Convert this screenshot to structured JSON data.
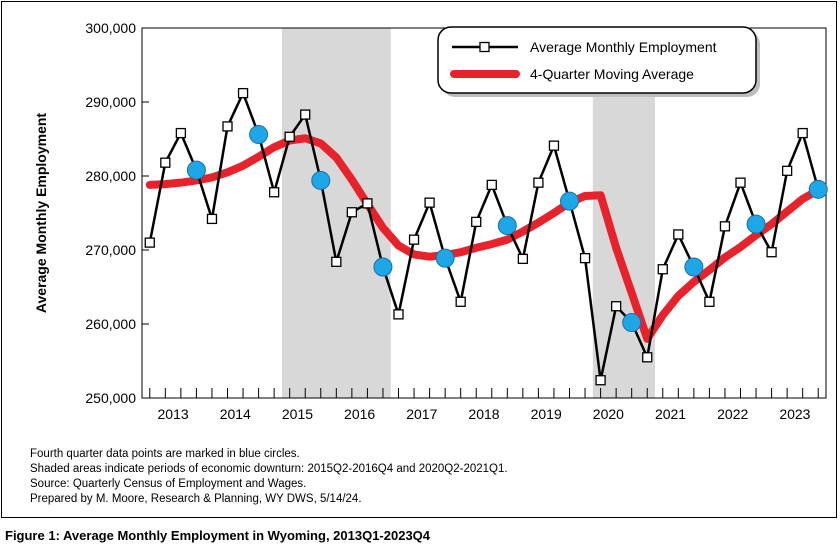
{
  "chart_data": {
    "type": "line",
    "x_tick_labels": [
      "2013",
      "2014",
      "2015",
      "2016",
      "2017",
      "2018",
      "2019",
      "2020",
      "2021",
      "2022",
      "2023"
    ],
    "y_tick_labels": [
      "250,000",
      "260,000",
      "270,000",
      "280,000",
      "290,000",
      "300,000"
    ],
    "ylim": [
      250000,
      300000
    ],
    "ylabel": "Average Monthly Employment",
    "xlabel": "",
    "quarters": [
      "2013Q1",
      "2013Q2",
      "2013Q3",
      "2013Q4",
      "2014Q1",
      "2014Q2",
      "2014Q3",
      "2014Q4",
      "2015Q1",
      "2015Q2",
      "2015Q3",
      "2015Q4",
      "2016Q1",
      "2016Q2",
      "2016Q3",
      "2016Q4",
      "2017Q1",
      "2017Q2",
      "2017Q3",
      "2017Q4",
      "2018Q1",
      "2018Q2",
      "2018Q3",
      "2018Q4",
      "2019Q1",
      "2019Q2",
      "2019Q3",
      "2019Q4",
      "2020Q1",
      "2020Q2",
      "2020Q3",
      "2020Q4",
      "2021Q1",
      "2021Q2",
      "2021Q3",
      "2021Q4",
      "2022Q1",
      "2022Q2",
      "2022Q3",
      "2022Q4",
      "2023Q1",
      "2023Q2",
      "2023Q3",
      "2023Q4"
    ],
    "series": [
      {
        "name": "Average Monthly Employment",
        "color": "#000000",
        "marker": "open-square",
        "values": [
          271000,
          281800,
          285800,
          280800,
          274200,
          286700,
          291200,
          285600,
          277800,
          285300,
          288300,
          279400,
          268400,
          275100,
          276300,
          267700,
          261300,
          271400,
          276400,
          268900,
          263000,
          273800,
          278800,
          273300,
          268800,
          279100,
          284100,
          276600,
          268900,
          252400,
          262400,
          260200,
          255500,
          267400,
          272100,
          267700,
          263000,
          273200,
          279100,
          273500,
          269700,
          280700,
          285800,
          278200
        ]
      },
      {
        "name": "4-Quarter Moving Average",
        "color": "#e8222a",
        "values": [
          278800,
          278900,
          279100,
          279400,
          279800,
          280500,
          281400,
          282600,
          283900,
          284800,
          285100,
          284400,
          282500,
          279500,
          276200,
          273000,
          270600,
          269400,
          269100,
          269300,
          269700,
          270300,
          270800,
          271400,
          272500,
          273700,
          275000,
          276400,
          277300,
          277400,
          270300,
          264200,
          258000,
          261200,
          263800,
          265700,
          267300,
          269000,
          270400,
          272000,
          273500,
          275200,
          276900,
          278100
        ]
      }
    ],
    "highlight_series_note": "Q4 points",
    "q4_marker_color": "#1ea7e6",
    "shaded_periods": [
      [
        "2015Q2",
        "2016Q4"
      ],
      [
        "2020Q2",
        "2021Q1"
      ]
    ],
    "shade_color": "#d8d8d8",
    "grid": false,
    "legend_position": "top-right"
  },
  "notes": [
    "Fourth quarter data points are marked in blue circles.",
    "Shaded areas indicate periods of economic downturn: 2015Q2-2016Q4 and 2020Q2-2021Q1.",
    "Source: Quarterly Census of Employment and Wages.",
    "Prepared by M. Moore, Research & Planning, WY DWS, 5/14/24."
  ],
  "figure_caption": "Figure 1: Average Monthly Employment in Wyoming, 2013Q1-2023Q4"
}
